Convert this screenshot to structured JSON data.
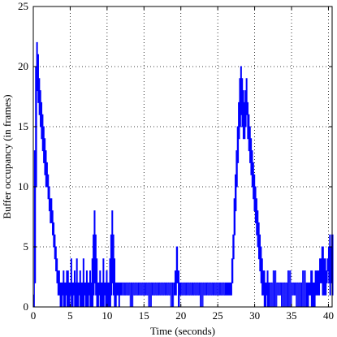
{
  "chart_data": {
    "type": "line",
    "title": "",
    "xlabel": "Time (seconds)",
    "ylabel": "Buffer occupancy (in frames)",
    "xlim": [
      0,
      40.5
    ],
    "ylim": [
      0,
      25
    ],
    "xticks": [
      0,
      5,
      10,
      15,
      20,
      25,
      30,
      35,
      40
    ],
    "yticks": [
      0,
      5,
      10,
      15,
      20,
      25
    ],
    "x_tick_labels": [
      "0",
      "5",
      "10",
      "15",
      "20",
      "25",
      "30",
      "35",
      "40"
    ],
    "y_tick_labels": [
      "0",
      "5",
      "10",
      "15",
      "20",
      "25"
    ],
    "grid": true,
    "grid_style": "dotted",
    "line_color": "#0000ff",
    "line_width": 1,
    "series": [
      {
        "style": "step-oscillating",
        "x": [
          0,
          0.15,
          0.3,
          0.45,
          0.6,
          0.75,
          0.9,
          1.05,
          1.2,
          1.35,
          1.5,
          1.65,
          1.8,
          1.95,
          2.1,
          2.25,
          2.4,
          2.55,
          2.7,
          2.85,
          3.0,
          3.15,
          3.3,
          3.45,
          3.6,
          3.75,
          3.9,
          4.05,
          4.2,
          4.35,
          4.5,
          4.65,
          4.8,
          4.95,
          5.1,
          5.25,
          5.4,
          5.55,
          5.7,
          5.85,
          6.0,
          6.15,
          6.3,
          6.45,
          6.6,
          6.75,
          6.9,
          7.05,
          7.2,
          7.35,
          7.5,
          7.65,
          7.8,
          7.95,
          8.1,
          8.25,
          8.4,
          8.55,
          8.7,
          8.85,
          9.0,
          9.15,
          9.3,
          9.45,
          9.6,
          9.75,
          9.9,
          10.05,
          10.2,
          10.35,
          10.5,
          10.65,
          10.8,
          10.95,
          11.1,
          11.25,
          11.4,
          11.55,
          11.7,
          11.85,
          12.0,
          12.5,
          13.0,
          13.5,
          14.0,
          14.5,
          15.0,
          15.5,
          16.0,
          16.5,
          17.0,
          17.5,
          18.0,
          18.5,
          19.0,
          19.2,
          19.4,
          19.6,
          19.8,
          20.0,
          20.5,
          21.0,
          21.5,
          22.0,
          22.5,
          23.0,
          23.5,
          24.0,
          24.5,
          25.0,
          25.5,
          26.0,
          26.3,
          26.6,
          26.9,
          27.05,
          27.2,
          27.35,
          27.5,
          27.65,
          27.8,
          27.95,
          28.1,
          28.25,
          28.4,
          28.55,
          28.7,
          28.85,
          29.0,
          29.15,
          29.3,
          29.45,
          29.6,
          29.75,
          29.9,
          30.05,
          30.2,
          30.35,
          30.5,
          30.65,
          30.8,
          30.95,
          31.1,
          31.25,
          31.4,
          31.55,
          31.7,
          31.85,
          32.0,
          32.5,
          33.0,
          33.5,
          34.0,
          34.5,
          35.0,
          35.5,
          36.0,
          36.5,
          37.0,
          37.3,
          37.6,
          37.9,
          38.2,
          38.5,
          38.8,
          39.1,
          39.4,
          39.7,
          39.85,
          40.0,
          40.15,
          40.3,
          40.45
        ],
        "hi": [
          1,
          13,
          20,
          22,
          21,
          19,
          18,
          17,
          16,
          15,
          14,
          13,
          12,
          11,
          10,
          9,
          9,
          8,
          7,
          6,
          5,
          4,
          3,
          3,
          2,
          2,
          2,
          3,
          2,
          2,
          3,
          3,
          2,
          2,
          4,
          2,
          2,
          3,
          2,
          4,
          2,
          2,
          3,
          2,
          2,
          4,
          2,
          2,
          3,
          2,
          2,
          3,
          2,
          4,
          6,
          8,
          6,
          4,
          2,
          2,
          3,
          2,
          2,
          4,
          2,
          2,
          3,
          2,
          2,
          4,
          6,
          8,
          6,
          4,
          2,
          2,
          2,
          2,
          2,
          2,
          2,
          2,
          2,
          2,
          2,
          2,
          2,
          2,
          2,
          2,
          2,
          2,
          2,
          2,
          2,
          3,
          5,
          3,
          2,
          2,
          2,
          2,
          2,
          2,
          2,
          2,
          2,
          2,
          2,
          2,
          2,
          2,
          2,
          2,
          4,
          6,
          9,
          11,
          13,
          15,
          17,
          19,
          20,
          19,
          18,
          17,
          18,
          19,
          17,
          16,
          15,
          14,
          13,
          12,
          11,
          10,
          9,
          8,
          7,
          6,
          5,
          4,
          3,
          3,
          2,
          2,
          3,
          2,
          2,
          3,
          2,
          2,
          2,
          3,
          2,
          2,
          2,
          3,
          2,
          2,
          3,
          2,
          3,
          3,
          4,
          5,
          4,
          3,
          4,
          5,
          6,
          5,
          6
        ],
        "lo": [
          0,
          2,
          10,
          18,
          17,
          16,
          15,
          14,
          13,
          12,
          11,
          10,
          10,
          9,
          8,
          7,
          7,
          6,
          5,
          4,
          3,
          2,
          1,
          1,
          0,
          0,
          1,
          0,
          0,
          1,
          0,
          0,
          0,
          1,
          0,
          0,
          1,
          0,
          0,
          0,
          0,
          1,
          0,
          0,
          0,
          0,
          1,
          0,
          0,
          0,
          1,
          0,
          0,
          0,
          1,
          2,
          1,
          0,
          0,
          1,
          0,
          0,
          0,
          0,
          1,
          0,
          0,
          0,
          0,
          0,
          1,
          2,
          1,
          0,
          0,
          1,
          1,
          0,
          1,
          1,
          1,
          1,
          0,
          1,
          1,
          1,
          1,
          0,
          1,
          1,
          1,
          1,
          1,
          0,
          1,
          1,
          2,
          0,
          1,
          1,
          1,
          1,
          1,
          1,
          0,
          1,
          1,
          1,
          1,
          1,
          1,
          1,
          1,
          1,
          2,
          4,
          6,
          8,
          10,
          12,
          14,
          15,
          16,
          15,
          14,
          14,
          15,
          16,
          14,
          13,
          12,
          11,
          10,
          9,
          8,
          7,
          6,
          5,
          4,
          3,
          2,
          1,
          1,
          0,
          0,
          1,
          0,
          0,
          0,
          0,
          1,
          0,
          0,
          0,
          1,
          0,
          0,
          0,
          0,
          1,
          0,
          0,
          1,
          1,
          2,
          1,
          1,
          2,
          3,
          2,
          1,
          2,
          1
        ]
      }
    ]
  }
}
